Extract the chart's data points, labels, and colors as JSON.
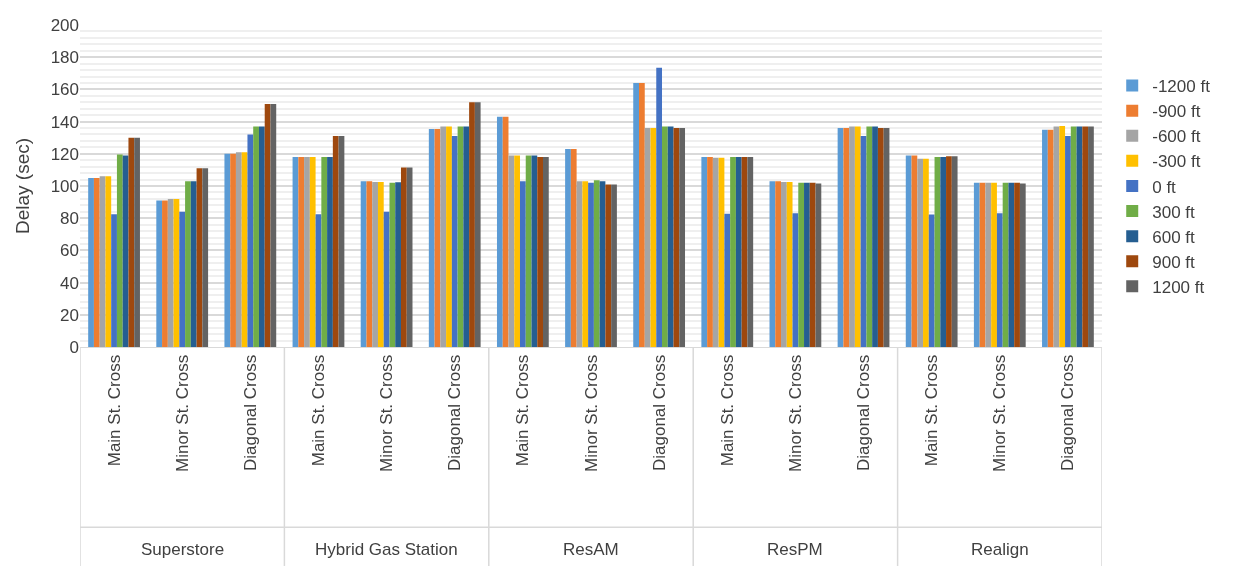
{
  "chart_data": {
    "type": "bar",
    "ylabel": "Delay (sec)",
    "categories": [
      "Main St. Cross",
      "Minor St. Cross",
      "Diagonal Cross",
      "Main St. Cross",
      "Minor St. Cross",
      "Diagonal Cross",
      "Main St. Cross",
      "Minor St. Cross",
      "Diagonal Cross",
      "Main St. Cross",
      "Minor St. Cross",
      "Diagonal Cross",
      "Main St. Cross",
      "Minor St. Cross",
      "Diagonal Cross"
    ],
    "annotations": [
      "Superstore",
      "Hybrid Gas Station",
      "ResAM",
      "ResPM",
      "Realign"
    ],
    "series": [
      {
        "name": "-1200 ft",
        "color": "#5b9bd5",
        "values": [
          105,
          91,
          120,
          118,
          103,
          135.4,
          143,
          123,
          164,
          118,
          103,
          136,
          119,
          102,
          135
        ]
      },
      {
        "name": "-900 ft",
        "color": "#ed7d31",
        "values": [
          105,
          91,
          120,
          118,
          103,
          135.4,
          143,
          123,
          164,
          118,
          103,
          136,
          119,
          102,
          135
        ]
      },
      {
        "name": "-600 ft",
        "color": "#a5a5a5",
        "values": [
          106,
          92,
          121,
          118,
          102.5,
          137,
          119,
          103,
          136,
          117.5,
          102.5,
          137,
          117,
          102,
          137
        ]
      },
      {
        "name": "-300 ft",
        "color": "#ffc000",
        "values": [
          106,
          92,
          121,
          118,
          102.5,
          137,
          119,
          103,
          136,
          117.5,
          102.5,
          137,
          117,
          102,
          137.3
        ]
      },
      {
        "name": "0 ft",
        "color": "#4472c4",
        "values": [
          82.5,
          84,
          132,
          82.5,
          84,
          131,
          103,
          102,
          173.5,
          82.7,
          83,
          131,
          82.3,
          83,
          131
        ]
      },
      {
        "name": "300 ft",
        "color": "#70ad47",
        "values": [
          119.5,
          103,
          137,
          118,
          102,
          137,
          119,
          103.5,
          137,
          118,
          102,
          137,
          118,
          102,
          137
        ]
      },
      {
        "name": "600 ft",
        "color": "#255e91",
        "values": [
          119,
          103,
          137,
          118,
          102.3,
          137,
          119,
          103,
          137,
          118,
          102,
          137,
          118,
          102,
          137
        ]
      },
      {
        "name": "900 ft",
        "color": "#9e480e",
        "values": [
          130,
          111,
          151,
          131,
          111.5,
          152,
          118,
          101,
          136,
          118,
          102,
          136,
          118.5,
          102,
          137
        ]
      },
      {
        "name": "1200 ft",
        "color": "#636363",
        "values": [
          130,
          111,
          151,
          131,
          111.5,
          152,
          118,
          101,
          136,
          118,
          101.5,
          136,
          118.5,
          101.5,
          137
        ]
      }
    ],
    "ylim": [
      0,
      200
    ],
    "yticks": [
      0,
      20,
      40,
      60,
      80,
      100,
      120,
      140,
      160,
      180,
      200
    ],
    "grid": "y",
    "legend": "right"
  }
}
